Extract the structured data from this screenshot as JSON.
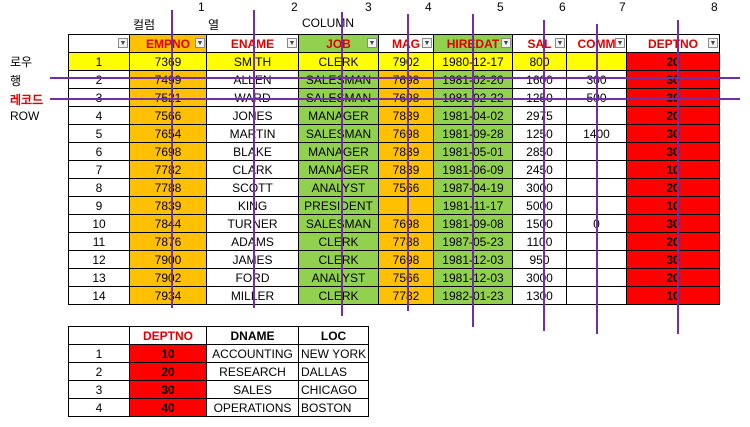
{
  "column_numbers": [
    "1",
    "2",
    "3",
    "4",
    "5",
    "6",
    "7",
    "8"
  ],
  "header_words": {
    "col1": "컬럼",
    "col2": "열",
    "col3": "COLUMN"
  },
  "side_labels": {
    "row1": "로우",
    "row2": "행",
    "row3": "레코드",
    "row4": "ROW"
  },
  "emp_headers": [
    "EMPNO",
    "ENAME",
    "JOB",
    "MAG",
    "HIREDAT",
    "SAL",
    "COMM",
    "DEPTNO"
  ],
  "emp_rows": [
    {
      "n": "1",
      "empno": "7369",
      "ename": "SMITH",
      "job": "CLERK",
      "mgr": "7902",
      "hiredate": "1980-12-17",
      "sal": "800",
      "comm": "",
      "deptno": "20"
    },
    {
      "n": "2",
      "empno": "7499",
      "ename": "ALLEN",
      "job": "SALESMAN",
      "mgr": "7698",
      "hiredate": "1981-02-20",
      "sal": "1600",
      "comm": "300",
      "deptno": "30"
    },
    {
      "n": "3",
      "empno": "7521",
      "ename": "WARD",
      "job": "SALESMAN",
      "mgr": "7698",
      "hiredate": "1981-02-22",
      "sal": "1250",
      "comm": "500",
      "deptno": "30"
    },
    {
      "n": "4",
      "empno": "7566",
      "ename": "JONES",
      "job": "MANAGER",
      "mgr": "7839",
      "hiredate": "1981-04-02",
      "sal": "2975",
      "comm": "",
      "deptno": "20"
    },
    {
      "n": "5",
      "empno": "7654",
      "ename": "MARTIN",
      "job": "SALESMAN",
      "mgr": "7698",
      "hiredate": "1981-09-28",
      "sal": "1250",
      "comm": "1400",
      "deptno": "30"
    },
    {
      "n": "6",
      "empno": "7698",
      "ename": "BLAKE",
      "job": "MANAGER",
      "mgr": "7839",
      "hiredate": "1981-05-01",
      "sal": "2850",
      "comm": "",
      "deptno": "30"
    },
    {
      "n": "7",
      "empno": "7782",
      "ename": "CLARK",
      "job": "MANAGER",
      "mgr": "7839",
      "hiredate": "1981-06-09",
      "sal": "2450",
      "comm": "",
      "deptno": "10"
    },
    {
      "n": "8",
      "empno": "7788",
      "ename": "SCOTT",
      "job": "ANALYST",
      "mgr": "7566",
      "hiredate": "1987-04-19",
      "sal": "3000",
      "comm": "",
      "deptno": "20"
    },
    {
      "n": "9",
      "empno": "7839",
      "ename": "KING",
      "job": "PRESIDENT",
      "mgr": "",
      "hiredate": "1981-11-17",
      "sal": "5000",
      "comm": "",
      "deptno": "10"
    },
    {
      "n": "10",
      "empno": "7844",
      "ename": "TURNER",
      "job": "SALESMAN",
      "mgr": "7698",
      "hiredate": "1981-09-08",
      "sal": "1500",
      "comm": "0",
      "deptno": "30"
    },
    {
      "n": "11",
      "empno": "7876",
      "ename": "ADAMS",
      "job": "CLERK",
      "mgr": "7788",
      "hiredate": "1987-05-23",
      "sal": "1100",
      "comm": "",
      "deptno": "20"
    },
    {
      "n": "12",
      "empno": "7900",
      "ename": "JAMES",
      "job": "CLERK",
      "mgr": "7698",
      "hiredate": "1981-12-03",
      "sal": "950",
      "comm": "",
      "deptno": "30"
    },
    {
      "n": "13",
      "empno": "7902",
      "ename": "FORD",
      "job": "ANALYST",
      "mgr": "7566",
      "hiredate": "1981-12-03",
      "sal": "3000",
      "comm": "",
      "deptno": "20"
    },
    {
      "n": "14",
      "empno": "7934",
      "ename": "MILLER",
      "job": "CLERK",
      "mgr": "7782",
      "hiredate": "1982-01-23",
      "sal": "1300",
      "comm": "",
      "deptno": "10"
    }
  ],
  "dept_headers": [
    "DEPTNO",
    "DNAME",
    "LOC"
  ],
  "dept_rows": [
    {
      "n": "1",
      "deptno": "10",
      "dname": "ACCOUNTING",
      "loc": "NEW YORK"
    },
    {
      "n": "2",
      "deptno": "20",
      "dname": "RESEARCH",
      "loc": "DALLAS"
    },
    {
      "n": "3",
      "deptno": "30",
      "dname": "SALES",
      "loc": "CHICAGO"
    },
    {
      "n": "4",
      "deptno": "40",
      "dname": "OPERATIONS",
      "loc": "BOSTON"
    }
  ],
  "colors": {
    "orange": "#ffc000",
    "green": "#92d050",
    "red": "#ff0000",
    "yellow": "#ffff00",
    "purple": "#7030a0"
  }
}
